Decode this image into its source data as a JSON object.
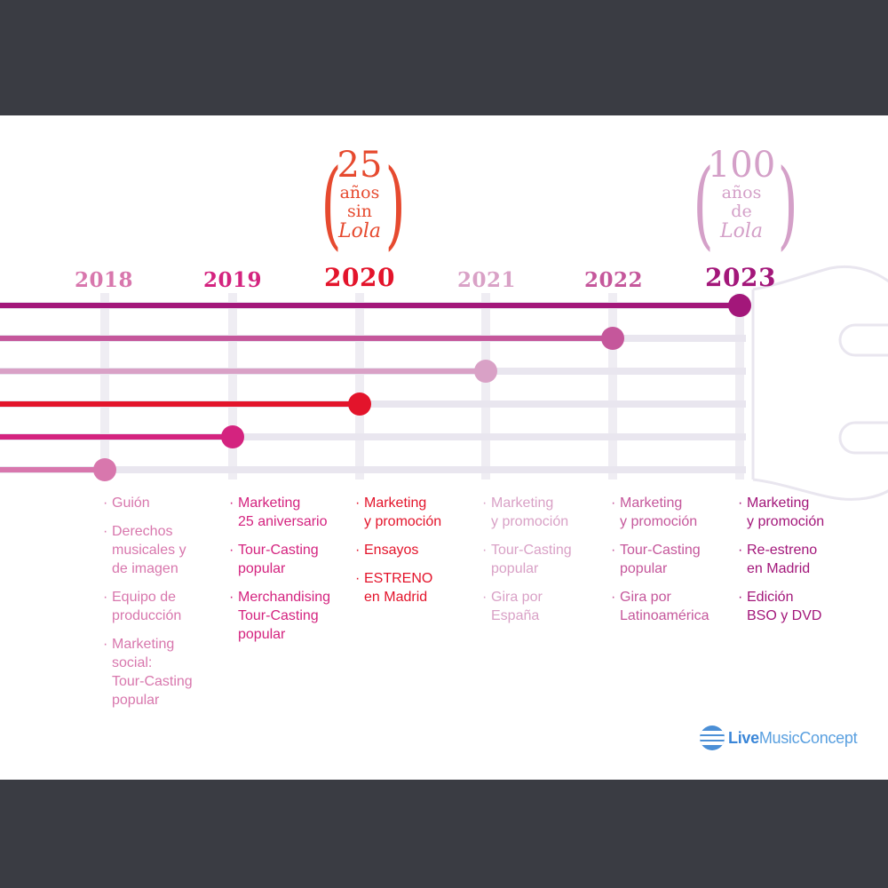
{
  "colors": {
    "y2018": "#d877ad",
    "y2019": "#d4237f",
    "y2020": "#e3142b",
    "y2021": "#d9a1c6",
    "y2022": "#c5579b",
    "y2023": "#a3177a",
    "track": "#e9e6ef",
    "orange": "#e64a2f",
    "lilac": "#d4a0c8"
  },
  "years": [
    "2018",
    "2019",
    "2020",
    "2021",
    "2022",
    "2023"
  ],
  "anniversary_left": {
    "number": "25",
    "line1": "años",
    "line2": "sin",
    "line3": "Lola"
  },
  "anniversary_right": {
    "number": "100",
    "line1": "años",
    "line2": "de",
    "line3": "Lola"
  },
  "columns": [
    {
      "year": "2018",
      "items": [
        "Guión",
        "Derechos\nmusicales y\nde imagen",
        "Equipo de\nproducción",
        "Marketing\nsocial:\nTour-Casting\npopular"
      ]
    },
    {
      "year": "2019",
      "items": [
        "Marketing\n25 aniversario",
        "Tour-Casting\npopular",
        "Merchandising\nTour-Casting\npopular"
      ]
    },
    {
      "year": "2020",
      "items": [
        "Marketing\ny promoción",
        "Ensayos",
        "ESTRENO\nen Madrid"
      ]
    },
    {
      "year": "2021",
      "items": [
        "Marketing\ny promoción",
        "Tour-Casting\npopular",
        "Gira por\nEspaña"
      ]
    },
    {
      "year": "2022",
      "items": [
        "Marketing\ny promoción",
        "Tour-Casting\npopular",
        "Gira por\nLatinoamérica"
      ]
    },
    {
      "year": "2023",
      "items": [
        "Marketing\ny promoción",
        "Re-estreno\nen Madrid",
        "Edición\nBSO y DVD"
      ]
    }
  ],
  "logo": {
    "bold": "Live",
    "mid": "Music",
    "light": "Concept"
  }
}
